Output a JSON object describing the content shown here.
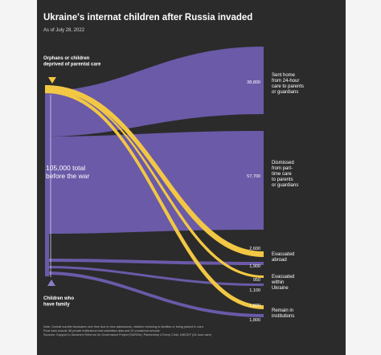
{
  "title": "Ukraine's internat children after Russia invaded",
  "subtitle": "As of July 28, 2022",
  "source_labels": {
    "orphans": [
      "Orphans or children",
      "deprived of parental care"
    ],
    "family": [
      "Children who",
      "have family"
    ],
    "total": [
      "105,000 total",
      "before the war"
    ]
  },
  "outcomes": [
    {
      "label": [
        "Sent home",
        "from 24-hour",
        "care to parents",
        "or guardians"
      ],
      "values": [
        "38,800"
      ]
    },
    {
      "label": [
        "Dismissed",
        "from part-",
        "time care",
        "to parents",
        "or guardians"
      ],
      "values": [
        "57,700"
      ]
    },
    {
      "label": [
        "Evacuated",
        "abroad"
      ],
      "values": [
        "2,600",
        "1,900"
      ]
    },
    {
      "label": [
        "Evacuated",
        "within",
        "Ukraine"
      ],
      "values": [
        "950",
        "1,100"
      ]
    },
    {
      "label": [
        "Remain in",
        "institutions"
      ],
      "values": [
        "1,600",
        "1,800"
      ]
    }
  ],
  "notes": [
    "Note: Overall number fluctuates over time due to new admissions, children returning to families or being placed in care.",
    "Final data include 38 private institutions that submitted data and 24 vocational schools",
    "Sources: Support to Ukraine's Reforms for Governance Project (SURGe); Partnership 4 Every Child; UNICEF (24-hour care)"
  ],
  "colors": {
    "background": "#2b2b2b",
    "family_flow": "#6a5aa8",
    "orphan_flow": "#f2c744",
    "text": "#ffffff"
  }
}
